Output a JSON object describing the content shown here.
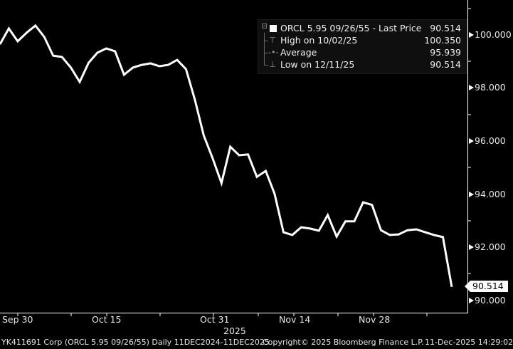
{
  "chart_data": {
    "type": "line",
    "title": "ORCL 5.95 09/26/55 - Last Price",
    "xlabel": "2025",
    "ylabel": "",
    "ylim": [
      90.0,
      101.0
    ],
    "grid": false,
    "legend_position": "top-right (inset)",
    "x_tick_labels": [
      "Sep 30",
      "Oct 15",
      "Oct 31",
      "Nov 14",
      "Nov 28"
    ],
    "y_tick_labels": [
      "90.000",
      "92.000",
      "94.000",
      "96.000",
      "98.000",
      "100.000"
    ],
    "series": [
      {
        "name": "ORCL 5.95 09/26/55 - Last Price",
        "color": "#ffffff",
        "values": [
          99.65,
          100.24,
          99.76,
          100.08,
          100.35,
          99.92,
          99.22,
          99.17,
          98.77,
          98.23,
          98.95,
          99.33,
          99.49,
          99.38,
          98.5,
          98.77,
          98.87,
          98.93,
          98.82,
          98.87,
          99.06,
          98.71,
          97.56,
          96.22,
          95.36,
          94.42,
          95.79,
          95.47,
          95.5,
          94.66,
          94.88,
          94.02,
          92.57,
          92.47,
          92.76,
          92.71,
          92.63,
          93.22,
          92.41,
          92.98,
          92.98,
          93.7,
          93.6,
          92.65,
          92.47,
          92.49,
          92.65,
          92.68,
          92.57,
          92.47,
          92.39,
          90.514
        ]
      }
    ],
    "annotations": {
      "last_price": 90.514,
      "high": {
        "date": "10/02/25",
        "value": 100.35
      },
      "average": 95.939,
      "low": {
        "date": "12/11/25",
        "value": 90.514
      }
    }
  },
  "legend": {
    "title": "ORCL 5.95 09/26/55 - Last Price",
    "title_value": "90.514",
    "high_label": "High on 10/02/25",
    "high_value": "100.350",
    "avg_label": "Average",
    "avg_value": "95.939",
    "low_label": "Low on 12/11/25",
    "low_value": "90.514"
  },
  "y_axis": {
    "ticks": [
      {
        "label": "100.000",
        "top": 41
      },
      {
        "label": "98.000",
        "top": 115
      },
      {
        "label": "96.000",
        "top": 190
      },
      {
        "label": "94.000",
        "top": 265
      },
      {
        "label": "92.000",
        "top": 339
      },
      {
        "label": "90.000",
        "top": 414
      }
    ],
    "last_price_tag": "90.514"
  },
  "x_axis": {
    "ticks": [
      {
        "label": "Sep 30",
        "left": 3
      },
      {
        "label": "Oct 15",
        "left": 129
      },
      {
        "label": "Oct 31",
        "left": 281
      },
      {
        "label": "Nov 14",
        "left": 392
      },
      {
        "label": "Nov 28",
        "left": 504
      }
    ],
    "year": "2025"
  },
  "footer": {
    "security": "YK411691 Corp (ORCL 5.95 09/26/55) Daily 11DEC2024-11DEC2025",
    "copyright": "Copyright© 2025 Bloomberg Finance L.P.",
    "timestamp": "11-Dec-2025 14:29:02"
  }
}
